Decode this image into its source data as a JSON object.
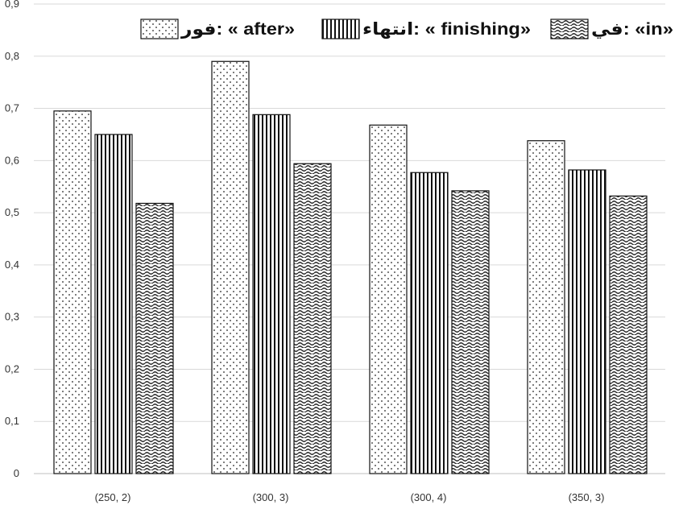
{
  "chart_data": {
    "type": "bar",
    "categories": [
      "(250, 2)",
      "(300, 3)",
      "(300, 4)",
      "(350, 3)"
    ],
    "series": [
      {
        "name": "فور: « after»",
        "pattern": "dots",
        "values": [
          0.695,
          0.79,
          0.668,
          0.638
        ]
      },
      {
        "name": "انتهاء: « finishing»",
        "pattern": "vertical-lines",
        "values": [
          0.65,
          0.688,
          0.577,
          0.582
        ]
      },
      {
        "name": "في: «in»",
        "pattern": "wavy-lines",
        "values": [
          0.518,
          0.594,
          0.542,
          0.532
        ]
      }
    ],
    "y_ticks": [
      "0",
      "0,1",
      "0,2",
      "0,3",
      "0,4",
      "0,5",
      "0,6",
      "0,7",
      "0,8",
      "0,9"
    ],
    "ylim": [
      0,
      0.9
    ],
    "grid": true,
    "legend_position": "top",
    "title": "",
    "xlabel": "",
    "ylabel": ""
  },
  "colors": {
    "grid": "#d9d9d9",
    "bar_stroke": "#111111",
    "axis": "#bfbfbf"
  }
}
